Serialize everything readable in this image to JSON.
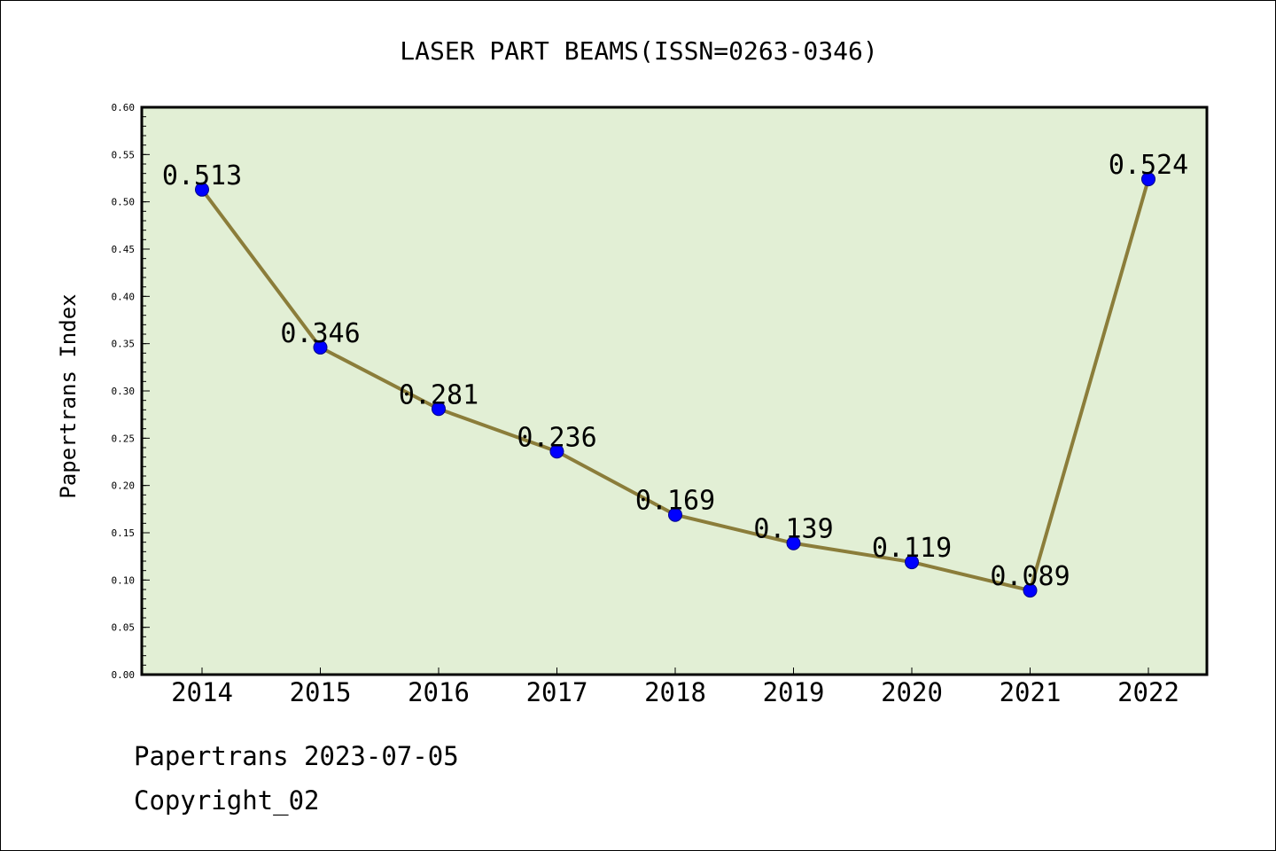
{
  "chart_data": {
    "type": "line",
    "title": "LASER PART BEAMS(ISSN=0263-0346)",
    "xlabel": "",
    "ylabel": "Papertrans Index",
    "categories": [
      "2014",
      "2015",
      "2016",
      "2017",
      "2018",
      "2019",
      "2020",
      "2021",
      "2022"
    ],
    "series": [
      {
        "values": [
          0.513,
          0.346,
          0.281,
          0.236,
          0.169,
          0.139,
          0.119,
          0.089,
          0.524
        ],
        "data_labels": [
          "0.513",
          "0.346",
          "0.281",
          "0.236",
          "0.169",
          "0.139",
          "0.119",
          "0.089",
          "0.524"
        ],
        "line_color": "#8b7d3a",
        "marker_color": "#0000ff"
      }
    ],
    "ylim": [
      0,
      0.6
    ],
    "yticks": [
      "0.00",
      "0.05",
      "0.10",
      "0.15",
      "0.20",
      "0.25",
      "0.30",
      "0.35",
      "0.40",
      "0.45",
      "0.50",
      "0.55",
      "0.60"
    ],
    "grid": false,
    "legend": "none",
    "plot_background": "#e2efd5"
  },
  "footer": {
    "credit": "Papertrans 2023-07-05",
    "copyright": "Copyright_02"
  }
}
